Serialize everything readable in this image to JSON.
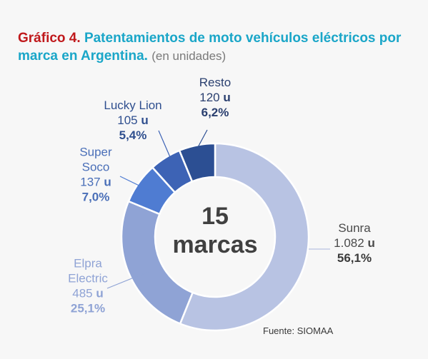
{
  "chart_data": {
    "type": "pie",
    "donut": true,
    "title_prefix": "Gráfico 4.",
    "title": "Patentamientos de moto vehículos eléctricos por marca en Argentina.",
    "title_unit": "(en unidades)",
    "center_number": "15",
    "center_text": "marcas",
    "unit_suffix": "u",
    "slices": [
      {
        "name": "Sunra",
        "name_lines": [
          "Sunra"
        ],
        "value": 1082,
        "value_label": "1.082",
        "percent": 56.1,
        "percent_label": "56,1%",
        "color": "#b8c3e3",
        "label_color": "#4a4a4a",
        "pct_color": "#3a3a3a"
      },
      {
        "name": "Elpra Electric",
        "name_lines": [
          "Elpra",
          "Electric"
        ],
        "value": 485,
        "value_label": "485",
        "percent": 25.1,
        "percent_label": "25,1%",
        "color": "#8fa3d5",
        "label_color": "#8fa3d5",
        "pct_color": "#8fa3d5"
      },
      {
        "name": "Super Soco",
        "name_lines": [
          "Super",
          "Soco"
        ],
        "value": 137,
        "value_label": "137",
        "percent": 7.0,
        "percent_label": "7,0%",
        "color": "#4f7cd2",
        "label_color": "#4a6fb8",
        "pct_color": "#4a6fb8"
      },
      {
        "name": "Lucky Lion",
        "name_lines": [
          "Lucky Lion"
        ],
        "value": 105,
        "value_label": "105",
        "percent": 5.4,
        "percent_label": "5,4%",
        "color": "#3d63b5",
        "label_color": "#2f4f8f",
        "pct_color": "#2f4f8f"
      },
      {
        "name": "Resto",
        "name_lines": [
          "Resto"
        ],
        "value": 120,
        "value_label": "120",
        "percent": 6.2,
        "percent_label": "6,2%",
        "color": "#2c4f93",
        "label_color": "#2a3f6f",
        "pct_color": "#2a3f6f"
      }
    ],
    "source": "Fuente: SIOMAA"
  }
}
